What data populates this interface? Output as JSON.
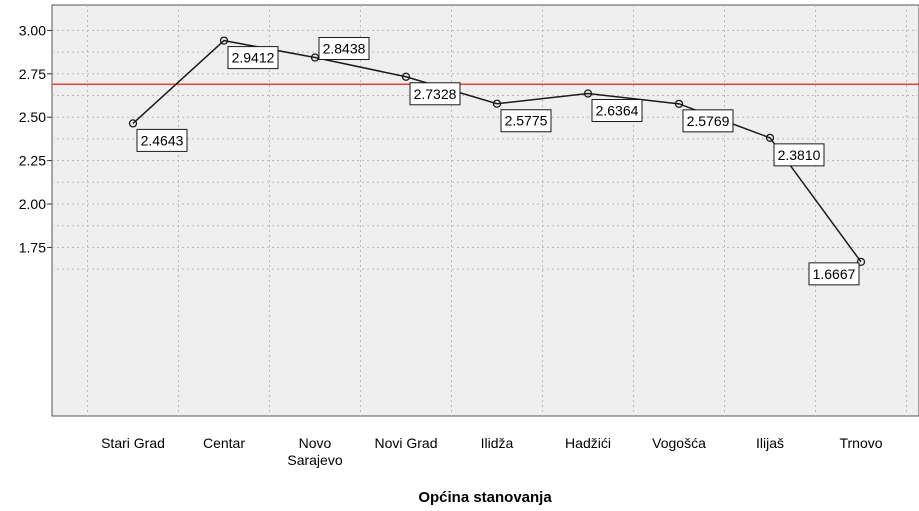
{
  "chart_data": {
    "type": "line",
    "title": "",
    "xlabel": "Općina stanovanja",
    "ylabel": "",
    "ylim": [
      1.5,
      3.05
    ],
    "yticks": [
      "1.75",
      "2.00",
      "2.25",
      "2.50",
      "2.75",
      "3.00"
    ],
    "ytick_values": [
      1.75,
      2.0,
      2.25,
      2.5,
      2.75,
      3.0
    ],
    "categories": [
      [
        "Stari Grad"
      ],
      [
        "Centar"
      ],
      [
        "Novo",
        "Sarajevo"
      ],
      [
        "Novi Grad"
      ],
      [
        "Ilidža"
      ],
      [
        "Hadžići"
      ],
      [
        "Vogošća"
      ],
      [
        "Ilijaš"
      ],
      [
        "Trnovo"
      ]
    ],
    "values": [
      2.4643,
      2.9412,
      2.8438,
      2.7328,
      2.5775,
      2.6364,
      2.5769,
      2.381,
      1.6667
    ],
    "data_labels": [
      "2.4643",
      "2.9412",
      "2.8438",
      "2.7328",
      "2.5775",
      "2.6364",
      "2.5769",
      "2.3810",
      "1.6667"
    ],
    "reference_line": {
      "value": 2.69,
      "color": "#e8413f"
    },
    "grid": true,
    "colors": {
      "plot_bg": "#efefef",
      "line": "#1a1a1a",
      "grid": "#b8b8b8"
    }
  }
}
